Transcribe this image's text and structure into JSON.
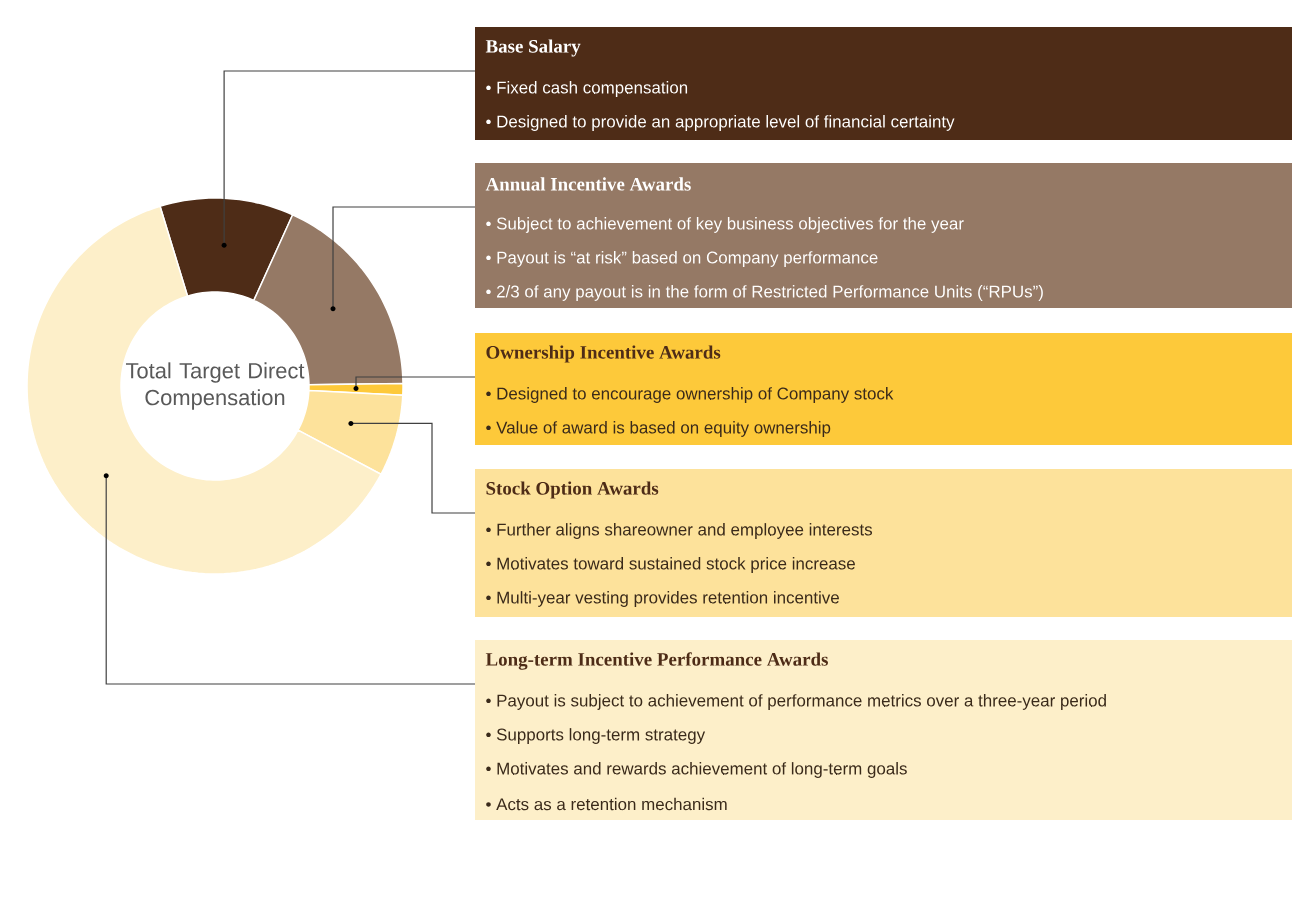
{
  "chart_data": {
    "type": "donut",
    "title": "Total Target Direct Compensation",
    "categories": [
      "Base Salary",
      "Annual Incentive Awards",
      "Ownership Incentive Awards",
      "Stock Option Awards",
      "Long-term Incentive Performance Awards"
    ],
    "values": [
      11.5,
      18,
      1,
      7,
      62.5
    ],
    "colors": [
      "#4e2c17",
      "#957965",
      "#fdc93a",
      "#fde29b",
      "#fdefc9"
    ],
    "annotations": [
      "• Fixed cash compensation",
      "• Designed to provide an appropriate level of financial certainty",
      "• Subject to achievement of key business objectives for the year",
      "• Payout is “at risk” based on Company performance",
      "• 2/3 of any payout is in the form of Restricted Performance Units (“RPUs”)",
      "• Designed to encourage ownership of Company stock",
      "• Value of award is based on equity ownership",
      "• Further aligns shareowner and employee interests",
      "• Motivates toward sustained stock price increase",
      "• Multi-year vesting provides retention incentive",
      "• Payout is subject to achievement of performance metrics over a three-year period",
      "• Supports long-term strategy",
      "• Motivates and rewards achievement of long-term goals",
      "• Acts as a retention mechanism"
    ]
  }
}
